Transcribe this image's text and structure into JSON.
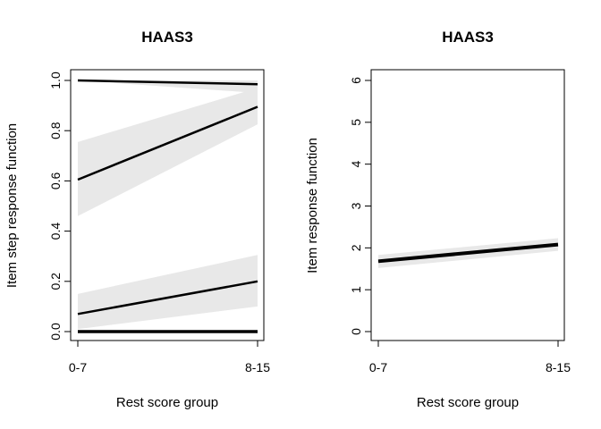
{
  "chart_data": [
    {
      "type": "line",
      "title": "HAAS3",
      "xlabel": "Rest score group",
      "ylabel": "Item step response function",
      "categories": [
        "0-7",
        "8-15"
      ],
      "ylim": [
        0,
        1
      ],
      "yticks": [
        "0.0",
        "0.2",
        "0.4",
        "0.6",
        "0.8",
        "1.0"
      ],
      "yticks_values": [
        0,
        0.2,
        0.4,
        0.6,
        0.8,
        1.0
      ],
      "series": [
        {
          "values": [
            1.0,
            0.985
          ],
          "lower": [
            1.0,
            0.95
          ],
          "upper": [
            1.0,
            1.0
          ],
          "width": 2.5
        },
        {
          "values": [
            0.605,
            0.895
          ],
          "lower": [
            0.46,
            0.825
          ],
          "upper": [
            0.755,
            0.97
          ],
          "width": 2.5
        },
        {
          "values": [
            0.07,
            0.2
          ],
          "lower": [
            0.01,
            0.1
          ],
          "upper": [
            0.15,
            0.305
          ],
          "width": 2.5
        },
        {
          "values": [
            0.0,
            0.0
          ],
          "lower": [
            0.0,
            0.0
          ],
          "upper": [
            0.0,
            0.0
          ],
          "width": 3.5
        }
      ]
    },
    {
      "type": "line",
      "title": "HAAS3",
      "xlabel": "Rest score group",
      "ylabel": "Item response function",
      "categories": [
        "0-7",
        "8-15"
      ],
      "ylim": [
        0,
        6
      ],
      "yticks": [
        "0",
        "1",
        "2",
        "3",
        "4",
        "5",
        "6"
      ],
      "yticks_values": [
        0,
        1,
        2,
        3,
        4,
        5,
        6
      ],
      "series": [
        {
          "values": [
            1.68,
            2.08
          ],
          "lower": [
            1.52,
            1.93
          ],
          "upper": [
            1.83,
            2.23
          ],
          "width": 4
        }
      ]
    }
  ]
}
